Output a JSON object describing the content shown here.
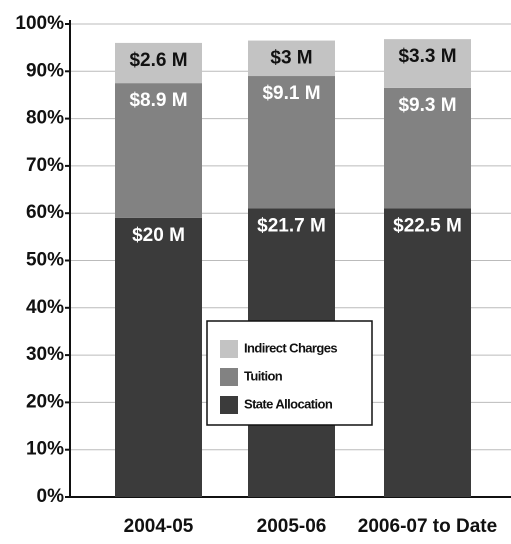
{
  "chart_data": {
    "type": "stacked_bar",
    "categories": [
      "2004-05",
      "2005-06",
      "2006-07 to Date"
    ],
    "series": [
      {
        "name": "State Allocation",
        "color": "#3b3b3b",
        "values": [
          59,
          61,
          61
        ],
        "segment_labels": [
          "$20 M",
          "$21.7 M",
          "$22.5 M"
        ]
      },
      {
        "name": "Tuition",
        "color": "#828282",
        "values": [
          28.5,
          28,
          25.5
        ],
        "segment_labels": [
          "$8.9 M",
          "$9.1 M",
          "$9.3 M"
        ]
      },
      {
        "name": "Indirect Charges",
        "color": "#c3c3c3",
        "values": [
          8.5,
          7.5,
          10.3
        ],
        "segment_labels": [
          "$2.6 M",
          "$3 M",
          "$3.3 M"
        ]
      }
    ],
    "ylim": [
      0,
      100
    ],
    "yticks": [
      {
        "value": 0,
        "label": "0%"
      },
      {
        "value": 10,
        "label": "10%"
      },
      {
        "value": 20,
        "label": "20%"
      },
      {
        "value": 30,
        "label": "30%"
      },
      {
        "value": 40,
        "label": "40%"
      },
      {
        "value": 50,
        "label": "50%"
      },
      {
        "value": 60,
        "label": "60%"
      },
      {
        "value": 70,
        "label": "70%"
      },
      {
        "value": 80,
        "label": "80%"
      },
      {
        "value": 90,
        "label": "90%"
      },
      {
        "value": 100,
        "label": "100%"
      }
    ],
    "grid": true
  }
}
